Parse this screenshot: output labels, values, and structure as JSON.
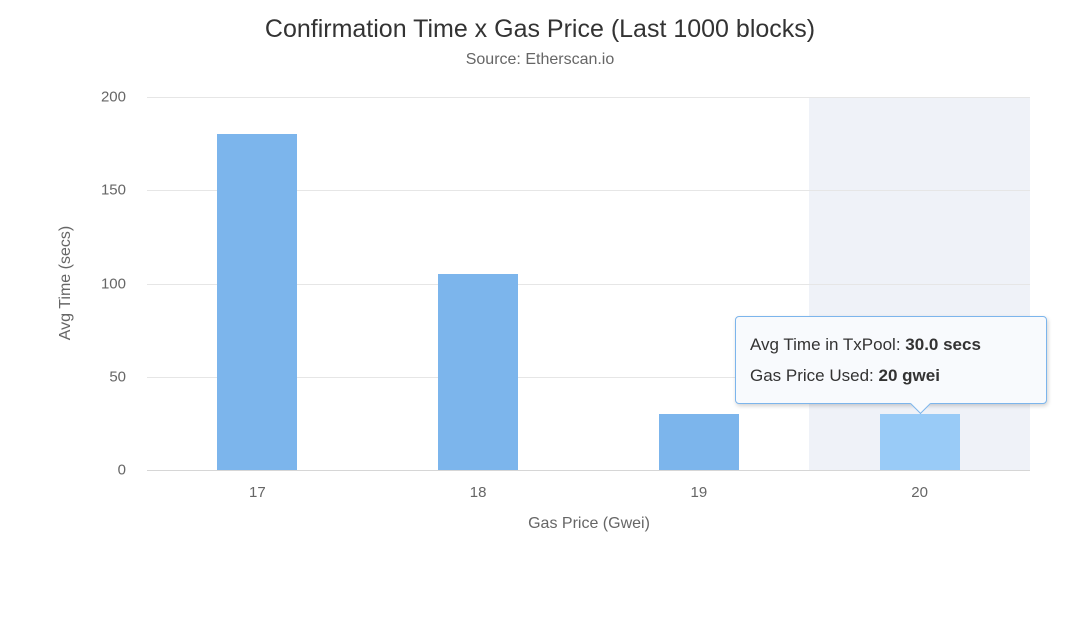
{
  "chart_data": {
    "type": "bar",
    "title": "Confirmation Time x Gas Price (Last 1000 blocks)",
    "subtitle": "Source: Etherscan.io",
    "categories": [
      "17",
      "18",
      "19",
      "20"
    ],
    "values": [
      180,
      105,
      30,
      30
    ],
    "xlabel": "Gas Price (Gwei)",
    "ylabel": "Avg Time (secs)",
    "ylim": [
      0,
      200
    ],
    "yticks": [
      0,
      50,
      100,
      150,
      200
    ],
    "grid": true,
    "legend_position": "none",
    "highlight_index": 3,
    "colors": {
      "bar": "#7cb5ec",
      "bar_hover": "#99cbf7",
      "hover_band": "#eff2f8",
      "gridline": "#e6e6e6",
      "axis_line": "#d6d6d6",
      "title_text": "#333333",
      "subtitle_text": "#666666",
      "label_text": "#666666",
      "tooltip_bg": "#f8fafd",
      "tooltip_border": "#7cb5ec"
    }
  },
  "tooltip": {
    "line1_label": "Avg Time in TxPool: ",
    "line1_value": "30.0 secs",
    "line2_label": "Gas Price Used: ",
    "line2_value": "20 gwei"
  }
}
